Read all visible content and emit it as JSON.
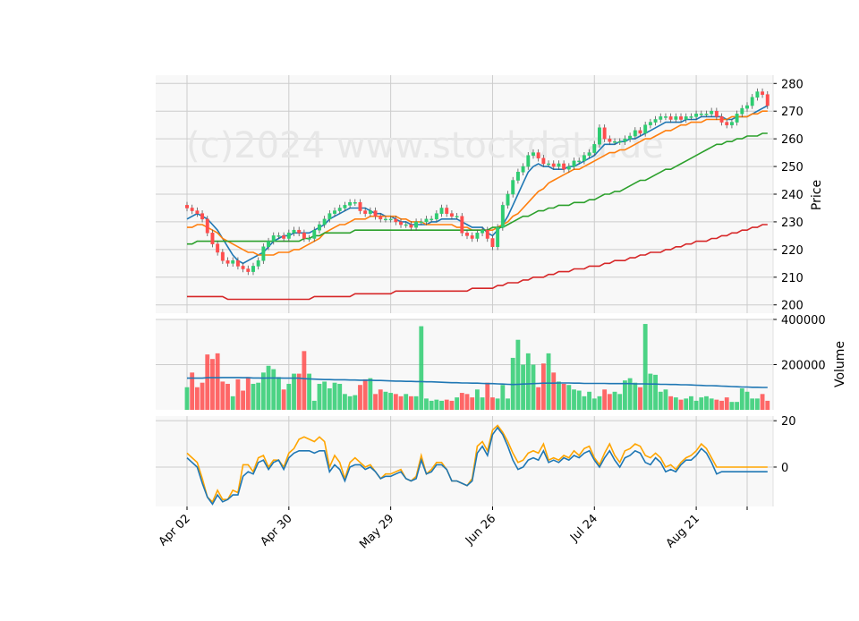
{
  "watermark": "(c)2024 www.stockdata.de",
  "chart_data": [
    {
      "type": "candlestick",
      "panel": "price",
      "ylabel": "Price",
      "ylim": [
        197,
        283
      ],
      "yticks": [
        200,
        210,
        220,
        230,
        240,
        250,
        260,
        270,
        280
      ],
      "xticks": [
        {
          "day": 0,
          "label": "Apr 02"
        },
        {
          "day": 20,
          "label": "Apr 30"
        },
        {
          "day": 40,
          "label": "May 29"
        },
        {
          "day": 60,
          "label": "Jun 26"
        },
        {
          "day": 80,
          "label": "Jul 24"
        },
        {
          "day": 100,
          "label": "Aug 21"
        }
      ],
      "close": [
        235,
        234,
        233,
        231,
        226,
        222,
        219,
        216,
        215,
        216,
        214,
        213,
        212,
        214,
        216,
        221,
        223,
        225,
        225,
        224,
        226,
        227,
        226,
        224,
        224,
        227,
        229,
        231,
        233,
        234,
        235,
        236,
        237,
        237,
        234,
        233,
        234,
        232,
        231,
        231,
        231,
        230,
        229,
        229,
        228,
        230,
        230,
        231,
        231,
        233,
        235,
        233,
        232,
        232,
        226,
        225,
        224,
        226,
        227,
        224,
        221,
        228,
        236,
        240,
        245,
        248,
        250,
        254,
        255,
        253,
        251,
        251,
        250,
        251,
        249,
        250,
        252,
        252,
        254,
        255,
        258,
        264,
        260,
        259,
        259,
        259,
        260,
        261,
        263,
        262,
        265,
        266,
        267,
        268,
        268,
        267,
        268,
        267,
        268,
        268,
        269,
        269,
        269,
        270,
        268,
        266,
        265,
        266,
        269,
        271,
        272,
        275,
        277,
        276,
        272
      ],
      "series": [
        {
          "name": "",
          "color": "#1f77b4",
          "values": [
            231,
            232,
            233,
            232,
            231,
            229,
            227,
            224,
            221,
            218,
            216,
            215,
            216,
            217,
            218,
            219,
            221,
            223,
            224,
            225,
            225,
            226,
            226,
            226,
            226,
            227,
            228,
            229,
            231,
            232,
            233,
            234,
            235,
            235,
            235,
            235,
            234,
            233,
            233,
            232,
            232,
            231,
            230,
            230,
            229,
            229,
            229,
            229,
            230,
            230,
            231,
            231,
            231,
            231,
            230,
            229,
            228,
            228,
            228,
            226,
            225,
            227,
            229,
            232,
            236,
            240,
            244,
            248,
            250,
            251,
            250,
            250,
            249,
            249,
            249,
            250,
            250,
            251,
            252,
            253,
            254,
            256,
            258,
            258,
            258,
            259,
            259,
            260,
            260,
            261,
            262,
            263,
            264,
            265,
            266,
            266,
            266,
            266,
            267,
            267,
            267,
            268,
            268,
            268,
            268,
            268,
            267,
            267,
            268,
            268,
            268,
            269,
            270,
            271,
            272
          ]
        },
        {
          "name": "",
          "color": "#ff7f0e",
          "values": [
            228,
            228,
            229,
            229,
            228,
            227,
            226,
            224,
            223,
            222,
            221,
            220,
            219,
            219,
            218,
            218,
            218,
            218,
            219,
            219,
            219,
            220,
            220,
            221,
            222,
            223,
            224,
            226,
            227,
            228,
            229,
            229,
            230,
            231,
            231,
            231,
            232,
            232,
            232,
            232,
            232,
            232,
            231,
            231,
            230,
            230,
            230,
            229,
            229,
            229,
            229,
            229,
            229,
            228,
            228,
            228,
            227,
            227,
            227,
            227,
            227,
            228,
            229,
            230,
            232,
            233,
            235,
            237,
            239,
            241,
            242,
            244,
            245,
            246,
            247,
            248,
            249,
            249,
            250,
            251,
            252,
            253,
            254,
            255,
            255,
            256,
            256,
            257,
            258,
            259,
            260,
            260,
            261,
            262,
            263,
            263,
            264,
            265,
            265,
            266,
            266,
            266,
            267,
            267,
            267,
            267,
            267,
            268,
            268,
            268,
            268,
            269,
            269,
            270,
            270
          ]
        },
        {
          "name": "",
          "color": "#2ca02c",
          "values": [
            222,
            222,
            223,
            223,
            223,
            223,
            223,
            223,
            223,
            223,
            223,
            223,
            223,
            223,
            223,
            223,
            223,
            223,
            223,
            223,
            223,
            223,
            223,
            224,
            224,
            225,
            225,
            226,
            226,
            226,
            226,
            226,
            226,
            227,
            227,
            227,
            227,
            227,
            227,
            227,
            227,
            227,
            227,
            227,
            227,
            227,
            227,
            227,
            227,
            227,
            227,
            227,
            227,
            227,
            227,
            227,
            227,
            227,
            227,
            227,
            228,
            228,
            228,
            229,
            230,
            231,
            232,
            232,
            233,
            234,
            234,
            235,
            235,
            236,
            236,
            236,
            237,
            237,
            237,
            238,
            238,
            239,
            240,
            240,
            241,
            241,
            242,
            243,
            244,
            245,
            245,
            246,
            247,
            248,
            249,
            249,
            250,
            251,
            252,
            253,
            254,
            255,
            256,
            257,
            258,
            258,
            259,
            259,
            260,
            260,
            261,
            261,
            261,
            262,
            262
          ]
        },
        {
          "name": "",
          "color": "#d62728",
          "values": [
            203,
            203,
            203,
            203,
            203,
            203,
            203,
            203,
            202,
            202,
            202,
            202,
            202,
            202,
            202,
            202,
            202,
            202,
            202,
            202,
            202,
            202,
            202,
            202,
            202,
            203,
            203,
            203,
            203,
            203,
            203,
            203,
            203,
            204,
            204,
            204,
            204,
            204,
            204,
            204,
            204,
            205,
            205,
            205,
            205,
            205,
            205,
            205,
            205,
            205,
            205,
            205,
            205,
            205,
            205,
            205,
            206,
            206,
            206,
            206,
            206,
            207,
            207,
            208,
            208,
            208,
            209,
            209,
            210,
            210,
            210,
            211,
            211,
            212,
            212,
            212,
            213,
            213,
            213,
            214,
            214,
            214,
            215,
            215,
            216,
            216,
            216,
            217,
            217,
            218,
            218,
            219,
            219,
            219,
            220,
            220,
            221,
            221,
            222,
            222,
            223,
            223,
            223,
            224,
            224,
            225,
            225,
            226,
            226,
            227,
            227,
            228,
            228,
            229,
            229
          ]
        }
      ]
    },
    {
      "type": "bar",
      "panel": "volume",
      "ylabel": "Volume",
      "ylim": [
        0,
        400000
      ],
      "yticks": [
        200000,
        400000
      ],
      "values": [
        100000,
        165000,
        100000,
        120000,
        245000,
        225000,
        250000,
        125000,
        115000,
        60000,
        135000,
        85000,
        145000,
        115000,
        120000,
        165000,
        195000,
        180000,
        145000,
        90000,
        115000,
        160000,
        160000,
        260000,
        160000,
        40000,
        115000,
        125000,
        95000,
        120000,
        115000,
        70000,
        60000,
        65000,
        110000,
        135000,
        140000,
        70000,
        90000,
        80000,
        75000,
        70000,
        60000,
        70000,
        60000,
        60000,
        370000,
        50000,
        40000,
        45000,
        40000,
        45000,
        40000,
        55000,
        75000,
        70000,
        55000,
        90000,
        55000,
        120000,
        55000,
        50000,
        110000,
        50000,
        230000,
        310000,
        200000,
        250000,
        200000,
        100000,
        205000,
        250000,
        165000,
        125000,
        115000,
        110000,
        90000,
        85000,
        60000,
        80000,
        50000,
        60000,
        90000,
        70000,
        80000,
        70000,
        130000,
        140000,
        120000,
        100000,
        380000,
        160000,
        155000,
        80000,
        90000,
        60000,
        55000,
        45000,
        50000,
        60000,
        40000,
        55000,
        60000,
        50000,
        45000,
        40000,
        55000,
        35000,
        35000,
        95000,
        80000,
        50000,
        50000,
        70000,
        40000
      ],
      "series": [
        {
          "name": "",
          "color": "#1f77b4",
          "values": [
            140000,
            140000,
            140000,
            140000,
            142000,
            142000,
            142000,
            143000,
            143000,
            143000,
            143000,
            142000,
            142000,
            141000,
            141000,
            140000,
            141000,
            141000,
            141000,
            140000,
            140000,
            140000,
            140000,
            138000,
            137000,
            136000,
            135000,
            134000,
            134000,
            133000,
            133000,
            133000,
            132000,
            132000,
            131000,
            131000,
            131000,
            130000,
            130000,
            129000,
            128000,
            127000,
            127000,
            126000,
            126000,
            125000,
            125000,
            124000,
            124000,
            123000,
            122000,
            121000,
            120000,
            120000,
            119000,
            119000,
            118000,
            118000,
            117000,
            116000,
            116000,
            115000,
            114000,
            113000,
            112000,
            113000,
            114000,
            115000,
            116000,
            117000,
            118000,
            118000,
            118000,
            119000,
            119000,
            119000,
            118000,
            118000,
            117000,
            117000,
            117000,
            117000,
            117000,
            116000,
            116000,
            116000,
            116000,
            116000,
            115000,
            115000,
            115000,
            114000,
            114000,
            113000,
            113000,
            112000,
            112000,
            111000,
            111000,
            110000,
            109000,
            108000,
            107000,
            107000,
            106000,
            105000,
            104000,
            103000,
            102000,
            101000,
            101000,
            100000,
            100000,
            99000,
            99000
          ]
        }
      ]
    },
    {
      "type": "line",
      "panel": "oscillator",
      "ylim": [
        -17,
        22
      ],
      "yticks": [
        0,
        20
      ],
      "series": [
        {
          "name": "",
          "color": "#ffa500",
          "values": [
            6,
            4,
            2,
            -5,
            -13,
            -15,
            -10,
            -14,
            -14,
            -10,
            -11,
            1,
            1,
            -2,
            4,
            5,
            0,
            3,
            3,
            0,
            6,
            8,
            12,
            13,
            12,
            11,
            13,
            11,
            0,
            5,
            2,
            -5,
            2,
            4,
            2,
            0,
            1,
            -2,
            -5,
            -3,
            -3,
            -2,
            -1,
            -5,
            -6,
            -4,
            5,
            -3,
            -1,
            2,
            2,
            -1,
            -6,
            -6,
            -7,
            -8,
            -5,
            9,
            11,
            7,
            16,
            18,
            15,
            11,
            6,
            2,
            3,
            6,
            7,
            6,
            10,
            3,
            4,
            3,
            5,
            4,
            7,
            5,
            8,
            9,
            4,
            1,
            6,
            10,
            5,
            2,
            7,
            8,
            10,
            9,
            5,
            4,
            6,
            4,
            0,
            1,
            -1,
            2,
            4,
            5,
            7,
            10,
            8,
            4,
            0,
            0,
            0,
            0,
            0,
            0,
            0,
            0,
            0,
            0,
            0
          ]
        },
        {
          "name": "",
          "color": "#1f77b4",
          "values": [
            4,
            2,
            0,
            -7,
            -13,
            -16,
            -12,
            -15,
            -14,
            -12,
            -12,
            -4,
            -2,
            -3,
            2,
            3,
            -1,
            2,
            3,
            -1,
            4,
            6,
            7,
            7,
            7,
            6,
            7,
            7,
            -2,
            1,
            -1,
            -6,
            0,
            1,
            1,
            -1,
            0,
            -2,
            -5,
            -4,
            -4,
            -3,
            -2,
            -5,
            -6,
            -5,
            3,
            -3,
            -2,
            1,
            1,
            -1,
            -6,
            -6,
            -7,
            -8,
            -6,
            6,
            9,
            5,
            14,
            17,
            14,
            9,
            3,
            -1,
            0,
            3,
            4,
            3,
            7,
            2,
            3,
            2,
            4,
            3,
            5,
            4,
            6,
            7,
            3,
            0,
            4,
            7,
            3,
            0,
            4,
            5,
            7,
            6,
            2,
            1,
            4,
            2,
            -2,
            -1,
            -2,
            1,
            3,
            3,
            5,
            8,
            6,
            2,
            -3,
            -2,
            -2,
            -2,
            -2,
            -2,
            -2,
            -2,
            -2,
            -2,
            -2
          ]
        }
      ]
    }
  ]
}
